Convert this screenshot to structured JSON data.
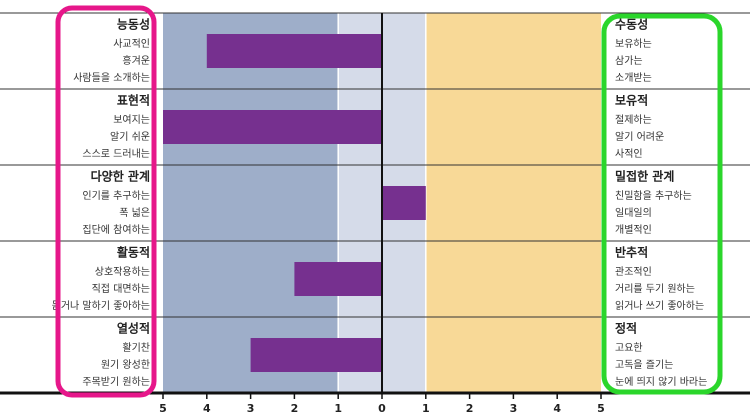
{
  "chart_data": {
    "type": "diverging-bar",
    "categories": [
      "능동성",
      "표현적",
      "다양한 관계",
      "활동적",
      "열성적"
    ],
    "left_descriptions": [
      [
        "사교적인",
        "흥겨운",
        "사람들을 소개하는"
      ],
      [
        "보여지는",
        "알기 쉬운",
        "스스로 드러내는"
      ],
      [
        "인기를 추구하는",
        "폭 넓은",
        "집단에 참여하는"
      ],
      [
        "상호작용하는",
        "직접 대면하는",
        "듣거나 말하기 좋아하는"
      ],
      [
        "활기찬",
        "원기 왕성한",
        "주목받기 원하는"
      ]
    ],
    "right_categories": [
      "수동성",
      "보유적",
      "밀접한 관계",
      "반추적",
      "정적"
    ],
    "right_descriptions": [
      [
        "보유하는",
        "삼가는",
        "소개받는"
      ],
      [
        "절제하는",
        "알기 어려운",
        "사적인"
      ],
      [
        "친밀함을 추구하는",
        "일대일의",
        "개별적인"
      ],
      [
        "관조적인",
        "거리를 두기 원하는",
        "읽거나 쓰기 좋아하는"
      ],
      [
        "고요한",
        "고독을 즐기는",
        "눈에 띄지 않기 바라는"
      ]
    ],
    "values": [
      -4,
      -5,
      1,
      -2,
      -3
    ],
    "color": "#76308f",
    "xlim": [
      -5,
      5
    ],
    "xticks": [
      {
        "value": -5,
        "label": "5"
      },
      {
        "value": -4,
        "label": "4"
      },
      {
        "value": -3,
        "label": "3"
      },
      {
        "value": -2,
        "label": "2"
      },
      {
        "value": -1,
        "label": "1"
      },
      0,
      1,
      2,
      3,
      4,
      5
    ],
    "bands": [
      {
        "from": -5,
        "to": -1,
        "color": "#9eaec9"
      },
      {
        "from": -1,
        "to": 1,
        "color": "#d5dbe9"
      },
      {
        "from": 1,
        "to": 5,
        "color": "#f8d997"
      }
    ]
  }
}
